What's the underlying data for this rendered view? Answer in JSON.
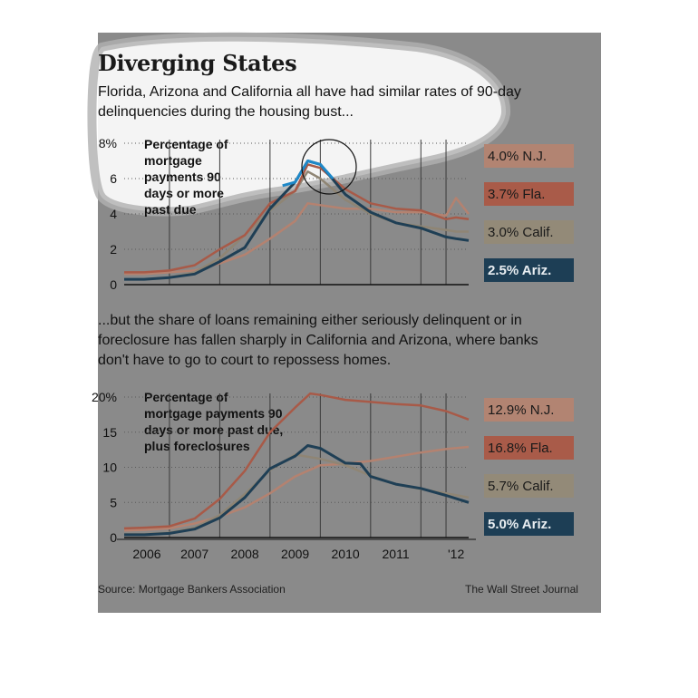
{
  "title": "Diverging States",
  "subtitle_top": "Florida, Arizona and California all have had similar rates of 90-day delinquencies during the housing bust...",
  "subtitle_bottom": "...but the share of loans remaining either seriously delinquent or in foreclosure has fallen sharply in California and Arizona, where banks don't have to go to court to repossess homes.",
  "source": "Source: Mortgage Bankers Association",
  "credit": "The Wall Street Journal",
  "colors": {
    "panel": "#8a8a8a",
    "fla": "#a85a48",
    "nj": "#b48270",
    "calif": "#8f8574",
    "ariz": "#1f3f55",
    "highlight": "#1e88c8"
  },
  "chart_data": [
    {
      "type": "line",
      "label": "Percentage of mortgage payments 90 days or more past due",
      "ylim": [
        0,
        8
      ],
      "yticks": [
        "8%",
        "6",
        "4",
        "2",
        "0"
      ],
      "xlim": [
        2005.6,
        2012.45
      ],
      "xticks": [
        "2006",
        "2007",
        "2008",
        "2009",
        "2010",
        "2011",
        "'12"
      ],
      "series": [
        {
          "key": "nj",
          "legend": "4.0% N.J.",
          "x": [
            2005.6,
            2006.0,
            2006.5,
            2007.0,
            2007.5,
            2008.0,
            2008.5,
            2009.0,
            2009.25,
            2009.5,
            2010.0,
            2010.5,
            2011.0,
            2011.5,
            2012.0,
            2012.2,
            2012.45
          ],
          "y": [
            0.6,
            0.6,
            0.7,
            0.8,
            1.2,
            1.7,
            2.6,
            3.6,
            4.6,
            4.5,
            4.3,
            4.3,
            4.1,
            4.1,
            3.9,
            4.9,
            4.0
          ]
        },
        {
          "key": "fla",
          "legend": "3.7% Fla.",
          "x": [
            2005.6,
            2006.0,
            2006.5,
            2007.0,
            2007.5,
            2008.0,
            2008.5,
            2009.0,
            2009.25,
            2009.5,
            2010.0,
            2010.5,
            2011.0,
            2011.5,
            2012.0,
            2012.2,
            2012.45
          ],
          "y": [
            0.7,
            0.7,
            0.8,
            1.1,
            2.0,
            2.8,
            4.6,
            5.3,
            6.8,
            6.6,
            5.4,
            4.6,
            4.3,
            4.2,
            3.7,
            3.8,
            3.7
          ]
        },
        {
          "key": "calif",
          "legend": "3.0% Calif.",
          "x": [
            2005.6,
            2006.0,
            2006.5,
            2007.0,
            2007.5,
            2008.0,
            2008.5,
            2009.0,
            2009.25,
            2009.5,
            2010.0,
            2010.5,
            2011.0,
            2011.5,
            2012.0,
            2012.2,
            2012.45
          ],
          "y": [
            0.3,
            0.3,
            0.4,
            0.7,
            1.5,
            2.8,
            4.2,
            5.3,
            6.4,
            6.0,
            4.8,
            4.0,
            3.5,
            3.3,
            3.1,
            3.0,
            3.0
          ]
        },
        {
          "key": "ariz",
          "legend": "2.5% Ariz.",
          "x": [
            2005.6,
            2006.0,
            2006.5,
            2007.0,
            2007.5,
            2008.0,
            2008.5,
            2009.0,
            2009.25,
            2009.5,
            2010.0,
            2010.5,
            2011.0,
            2011.5,
            2012.0,
            2012.2,
            2012.45
          ],
          "y": [
            0.3,
            0.3,
            0.4,
            0.6,
            1.3,
            2.1,
            4.3,
            5.8,
            7.0,
            6.8,
            5.1,
            4.1,
            3.5,
            3.2,
            2.7,
            2.6,
            2.5
          ]
        }
      ]
    },
    {
      "type": "line",
      "label": "Percentage of mortgage payments 90 days or more past due, plus foreclosures",
      "ylim": [
        0,
        20
      ],
      "yticks": [
        "20%",
        "15",
        "10",
        "5",
        "0"
      ],
      "xlim": [
        2005.6,
        2012.45
      ],
      "xticks": [
        "2006",
        "2007",
        "2008",
        "2009",
        "2010",
        "2011",
        "'12"
      ],
      "series": [
        {
          "key": "fla",
          "legend": "16.8% Fla.",
          "x": [
            2005.6,
            2006.0,
            2006.5,
            2007.0,
            2007.5,
            2008.0,
            2008.5,
            2009.0,
            2009.3,
            2009.5,
            2010.0,
            2010.5,
            2011.0,
            2011.5,
            2012.0,
            2012.45
          ],
          "y": [
            1.3,
            1.4,
            1.6,
            2.7,
            5.5,
            9.5,
            15.0,
            18.5,
            20.5,
            20.3,
            19.6,
            19.3,
            19.0,
            18.8,
            18.0,
            16.8
          ]
        },
        {
          "key": "nj",
          "legend": "12.9% N.J.",
          "x": [
            2005.6,
            2006.0,
            2006.5,
            2007.0,
            2007.5,
            2008.0,
            2008.5,
            2009.0,
            2009.5,
            2010.0,
            2010.5,
            2011.0,
            2011.5,
            2012.0,
            2012.45
          ],
          "y": [
            1.0,
            1.1,
            1.3,
            2.0,
            3.0,
            4.3,
            6.3,
            8.7,
            10.3,
            10.5,
            10.9,
            11.5,
            12.1,
            12.6,
            12.9
          ]
        },
        {
          "key": "calif",
          "legend": "5.7% Calif.",
          "x": [
            2005.6,
            2006.0,
            2006.5,
            2007.0,
            2007.5,
            2008.0,
            2008.5,
            2009.0,
            2009.5,
            2010.0,
            2010.5,
            2011.0,
            2011.5,
            2012.0,
            2012.45
          ],
          "y": [
            0.5,
            0.5,
            0.7,
            1.4,
            3.2,
            6.2,
            9.6,
            11.8,
            11.2,
            10.3,
            8.8,
            7.6,
            6.9,
            6.3,
            5.7
          ]
        },
        {
          "key": "ariz",
          "legend": "5.0% Ariz.",
          "x": [
            2005.6,
            2006.0,
            2006.5,
            2007.0,
            2007.5,
            2008.0,
            2008.5,
            2009.0,
            2009.25,
            2009.5,
            2010.0,
            2010.3,
            2010.5,
            2011.0,
            2011.5,
            2012.0,
            2012.45
          ],
          "y": [
            0.4,
            0.4,
            0.6,
            1.2,
            2.8,
            5.7,
            9.8,
            11.6,
            13.1,
            12.7,
            10.6,
            10.5,
            8.7,
            7.6,
            7.0,
            6.0,
            5.0
          ]
        }
      ]
    }
  ]
}
